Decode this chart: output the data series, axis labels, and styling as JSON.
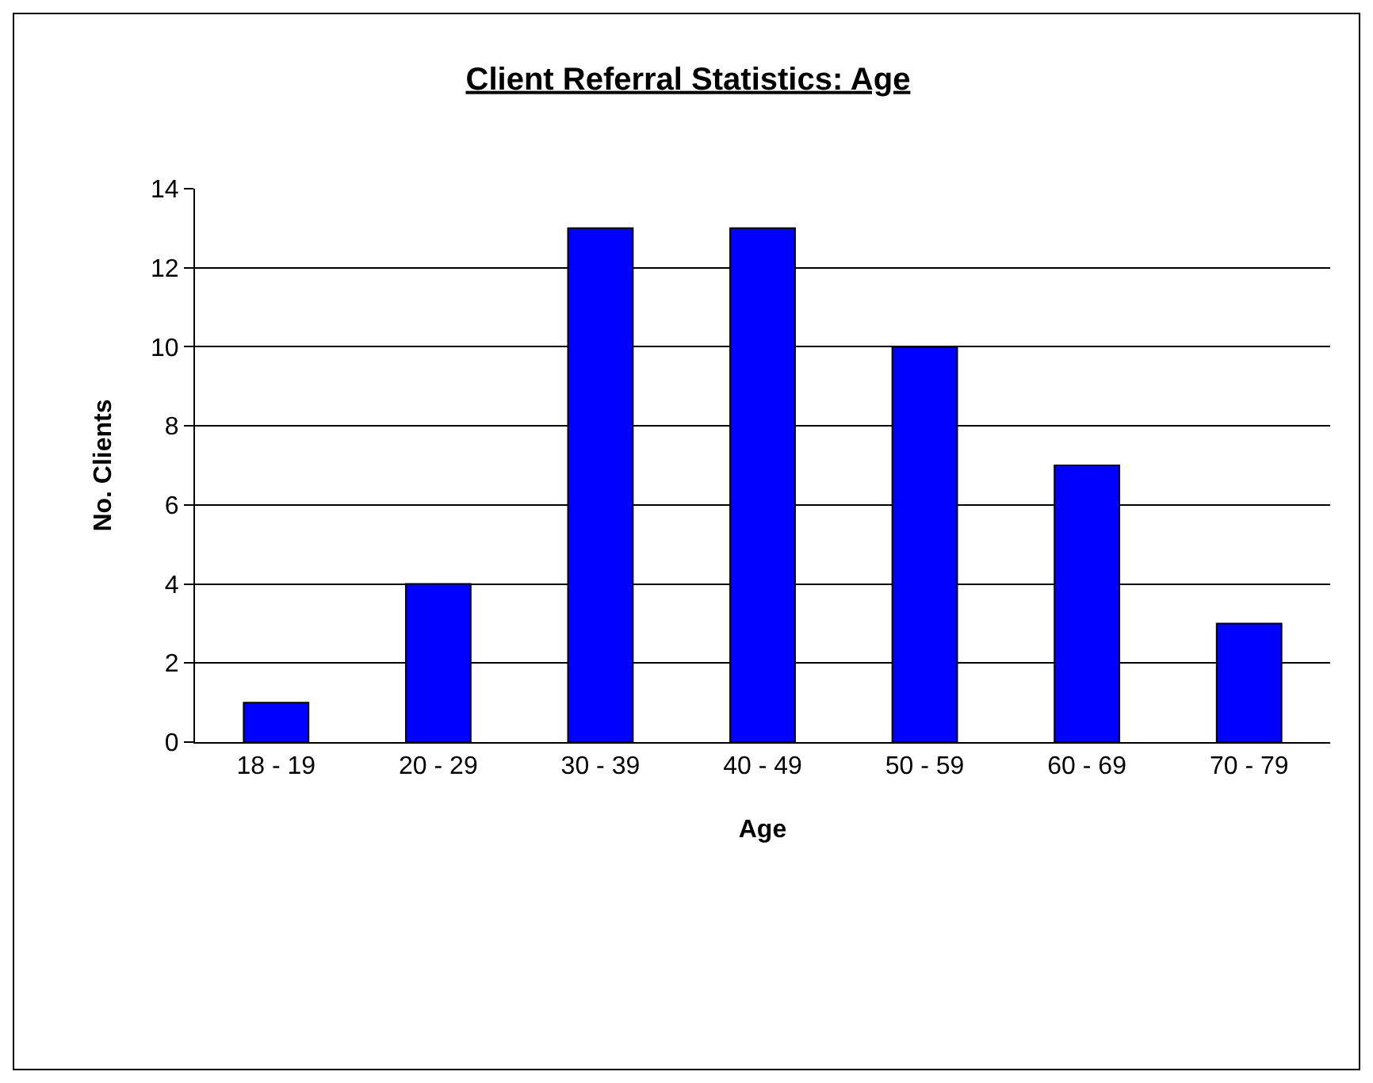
{
  "chart_data": {
    "type": "bar",
    "title": "Client Referral Statistics: Age",
    "xlabel": "Age",
    "ylabel": "No. Clients",
    "categories": [
      "18 - 19",
      "20 - 29",
      "30 - 39",
      "40 - 49",
      "50 - 59",
      "60 - 69",
      "70 - 79"
    ],
    "values": [
      1,
      4,
      13,
      13,
      10,
      7,
      3
    ],
    "color": "#0000ff",
    "ylim": [
      0,
      14
    ],
    "yticks": [
      0,
      2,
      4,
      6,
      8,
      10,
      12,
      14
    ],
    "grid": "y",
    "legend": false
  }
}
